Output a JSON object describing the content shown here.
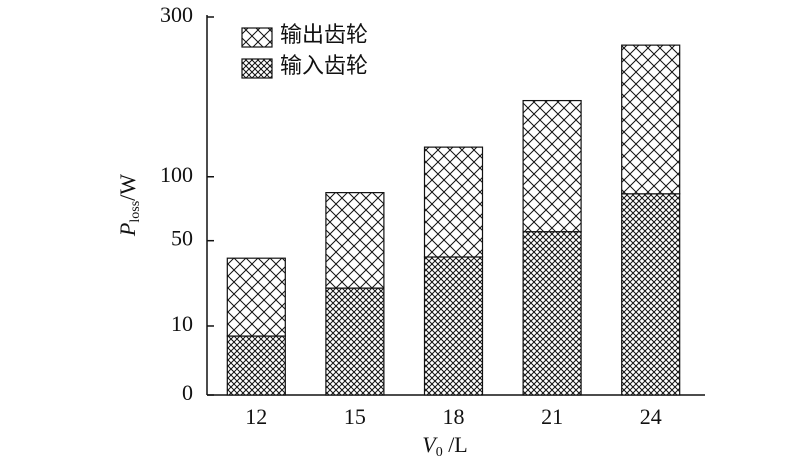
{
  "chart_data": {
    "type": "stacked_bar",
    "scale": "sqrt",
    "x_label": {
      "symbol": "V",
      "subscript": "0",
      "unit": " /L"
    },
    "y_label": {
      "symbol": "P",
      "subscript": "loss",
      "unit": "/W"
    },
    "categories": [
      "12",
      "15",
      "18",
      "21",
      "24"
    ],
    "series": [
      {
        "name": "输入齿轮",
        "pattern": "dense-crosshatch",
        "color": "#111111",
        "values": [
          7.3,
          24,
          40,
          56,
          85
        ]
      },
      {
        "name": "输出齿轮",
        "pattern": "crosshatch",
        "color": "#111111",
        "values": [
          32,
          62,
          89,
          126,
          172
        ]
      }
    ],
    "ylim": [
      0,
      300
    ],
    "yticks": [
      0,
      10,
      50,
      100,
      300
    ],
    "grid": false,
    "legend": "top-left"
  }
}
